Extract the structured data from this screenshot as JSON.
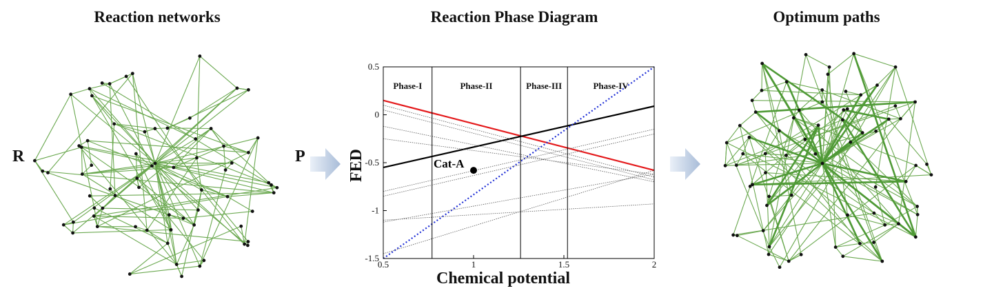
{
  "panels": {
    "left_title": "Reaction networks",
    "center_title": "Reaction Phase Diagram",
    "right_title": "Optimum paths"
  },
  "labels": {
    "reactant": "R",
    "product": "P"
  },
  "chart_data": {
    "type": "line",
    "title": "",
    "xlabel": "Chemical potential",
    "ylabel": "FED",
    "xlim": [
      0.5,
      2
    ],
    "ylim": [
      -1.5,
      0.5
    ],
    "x_ticks": [
      "0.5",
      "1",
      "1.5",
      "2"
    ],
    "y_ticks": [
      "0.5",
      "0",
      "-0.5",
      "-1",
      "-1.5"
    ],
    "phases": [
      {
        "name": "Phase-I",
        "x_start": 0.5,
        "x_end": 0.77
      },
      {
        "name": "Phase-II",
        "x_start": 0.77,
        "x_end": 1.26
      },
      {
        "name": "Phase-III",
        "x_start": 1.26,
        "x_end": 1.52
      },
      {
        "name": "Phase-IV",
        "x_start": 1.52,
        "x_end": 2.0
      }
    ],
    "series": [
      {
        "style": "solid-red",
        "color": "#e41a1c",
        "x": [
          0.5,
          2.0
        ],
        "y": [
          0.15,
          -0.58
        ]
      },
      {
        "style": "solid-black",
        "color": "#000000",
        "x": [
          0.5,
          2.0
        ],
        "y": [
          -0.55,
          0.09
        ]
      },
      {
        "style": "dotted-blue",
        "color": "#1f2fd6",
        "x": [
          0.5,
          2.0
        ],
        "y": [
          -1.5,
          0.5
        ]
      },
      {
        "style": "dotted-gray",
        "color": "#555555",
        "x": [
          0.5,
          2.0
        ],
        "y": [
          0.1,
          -0.65
        ]
      },
      {
        "style": "dotted-gray",
        "color": "#555555",
        "x": [
          0.5,
          2.0
        ],
        "y": [
          0.05,
          -0.68
        ]
      },
      {
        "style": "dotted-gray",
        "color": "#555555",
        "x": [
          0.5,
          2.0
        ],
        "y": [
          -0.12,
          -0.7
        ]
      },
      {
        "style": "dotted-gray",
        "color": "#555555",
        "x": [
          0.5,
          2.0
        ],
        "y": [
          -0.25,
          -0.62
        ]
      },
      {
        "style": "dotted-gray",
        "color": "#555555",
        "x": [
          0.5,
          2.0
        ],
        "y": [
          -0.8,
          -0.15
        ]
      },
      {
        "style": "dotted-gray",
        "color": "#555555",
        "x": [
          0.5,
          2.0
        ],
        "y": [
          -0.85,
          -0.2
        ]
      },
      {
        "style": "dotted-gray",
        "color": "#555555",
        "x": [
          0.5,
          2.0
        ],
        "y": [
          -1.1,
          -0.93
        ]
      },
      {
        "style": "dotted-gray",
        "color": "#555555",
        "x": [
          0.5,
          2.0
        ],
        "y": [
          -1.12,
          -0.62
        ]
      },
      {
        "style": "dotted-gray",
        "color": "#555555",
        "x": [
          0.5,
          2.0
        ],
        "y": [
          -1.45,
          -0.58
        ]
      }
    ],
    "annotations": [
      {
        "text": "Cat-A",
        "x": 1.0,
        "y": -0.58
      }
    ]
  }
}
